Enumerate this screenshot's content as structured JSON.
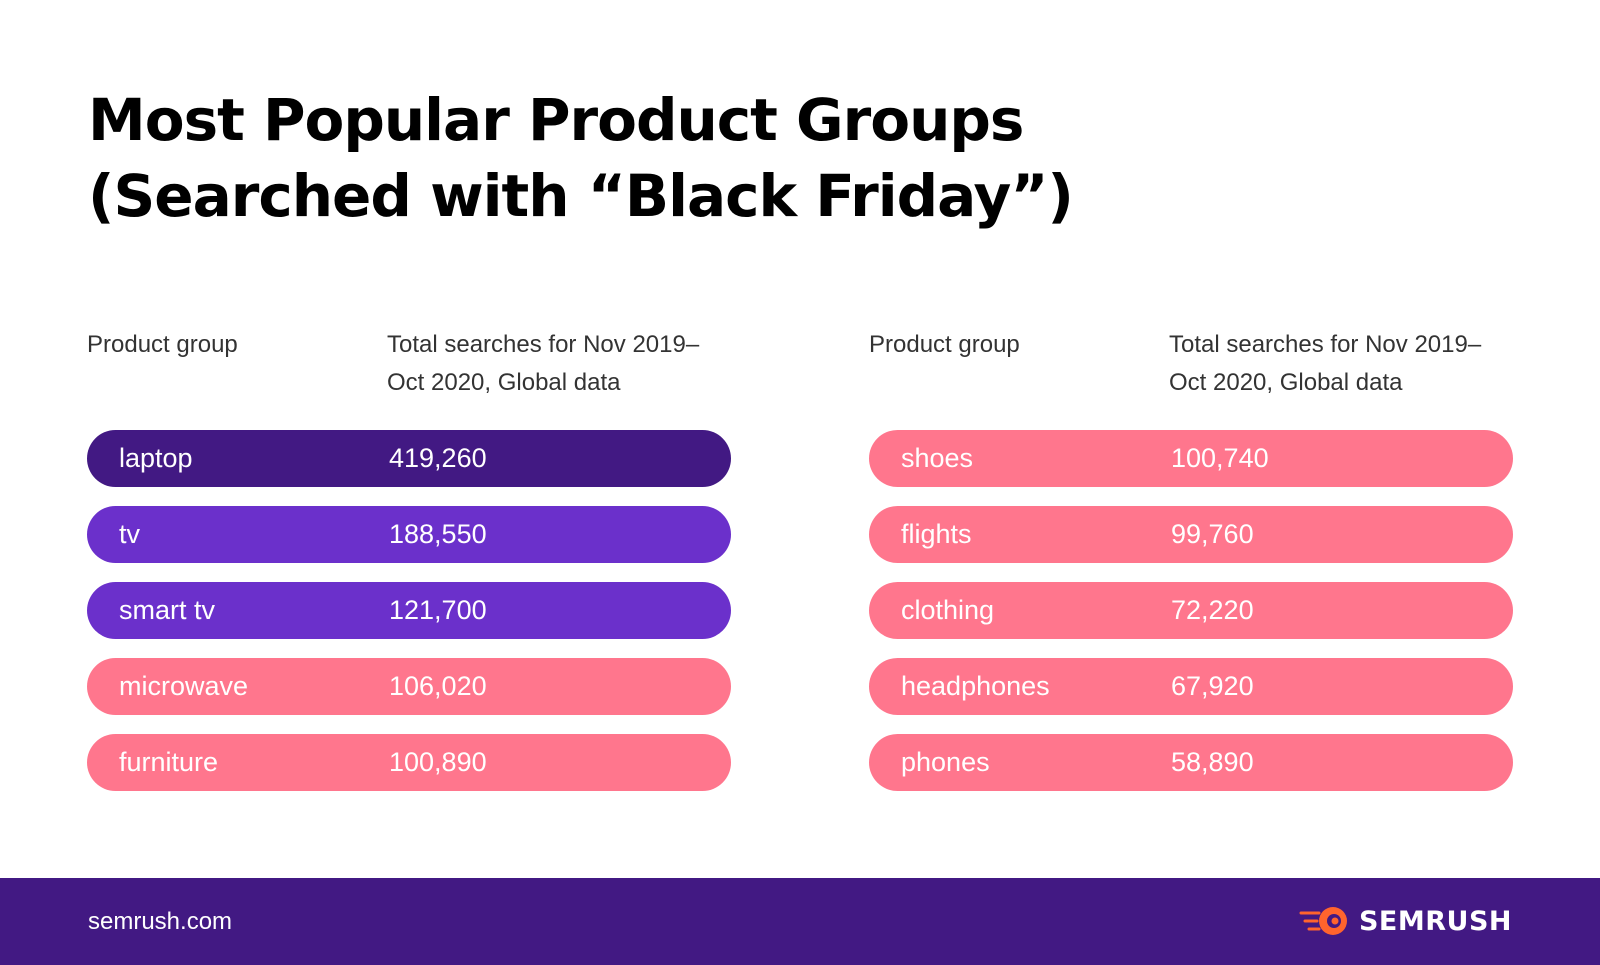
{
  "title_line1": "Most Popular Product Groups",
  "title_line2": "(Searched with “Black Friday”)",
  "chart_data": {
    "type": "table",
    "columns": [
      "Product group",
      "Total searches for Nov 2019–Oct 2020, Global data"
    ],
    "column_header_group": "Product group",
    "column_header_total_line1": "Total searches for Nov 2019–",
    "column_header_total_line2": "Oct 2020, Global data",
    "rows": [
      {
        "group": "laptop",
        "value": "419,260",
        "color": "#421983"
      },
      {
        "group": "tv",
        "value": "188,550",
        "color": "#6b30cb"
      },
      {
        "group": "smart tv",
        "value": "121,700",
        "color": "#6b30cb"
      },
      {
        "group": "microwave",
        "value": "106,020",
        "color": "#ff768d"
      },
      {
        "group": "furniture",
        "value": "100,890",
        "color": "#ff768d"
      },
      {
        "group": "shoes",
        "value": "100,740",
        "color": "#ff768d"
      },
      {
        "group": "flights",
        "value": "99,760",
        "color": "#ff768d"
      },
      {
        "group": "clothing",
        "value": "72,220",
        "color": "#ff768d"
      },
      {
        "group": "headphones",
        "value": "67,920",
        "color": "#ff768d"
      },
      {
        "group": "phones",
        "value": "58,890",
        "color": "#ff768d"
      }
    ]
  },
  "footer": {
    "url": "semrush.com",
    "brand": "SEMRUSH",
    "brand_icon": "semrush-fireball-icon"
  },
  "colors": {
    "dark_purple": "#421983",
    "purple": "#6b30cb",
    "pink": "#ff768d",
    "logo_orange": "#ff642d"
  }
}
